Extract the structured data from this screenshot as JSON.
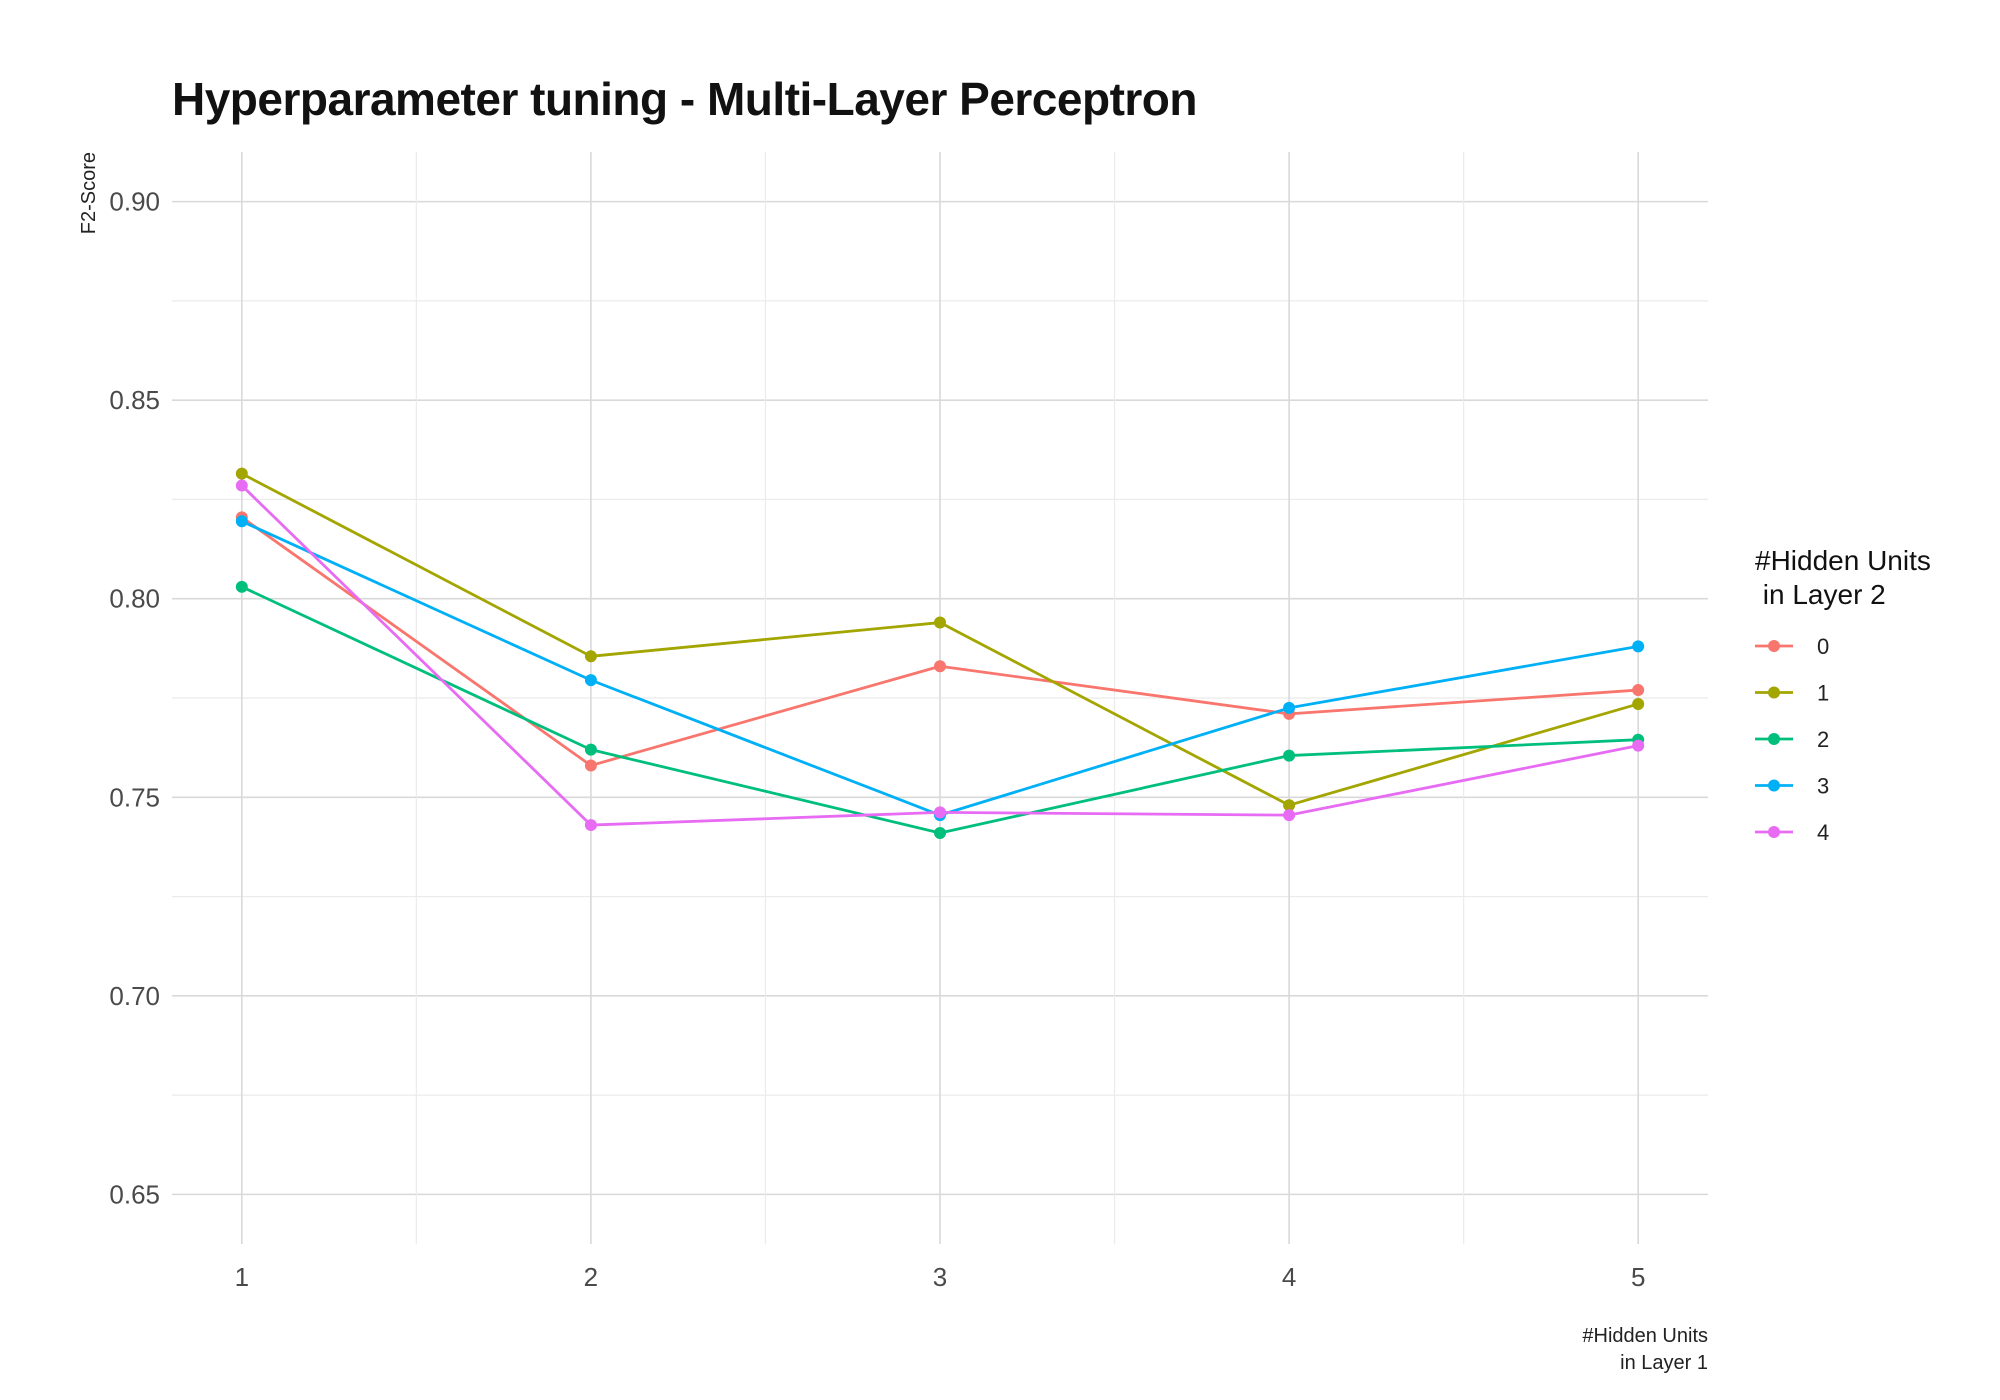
{
  "chart_data": {
    "type": "line",
    "title": "Hyperparameter tuning - Multi-Layer Perceptron",
    "xlabel_lines": [
      "#Hidden Units",
      "in Layer 1"
    ],
    "ylabel": "F2-Score",
    "x": [
      1,
      2,
      3,
      4,
      5
    ],
    "x_tick_labels": [
      "1",
      "2",
      "3",
      "4",
      "5"
    ],
    "xlim": [
      0.8,
      5.2
    ],
    "ylim": [
      0.6375,
      0.9125
    ],
    "y_ticks": [
      0.65,
      0.7,
      0.75,
      0.8,
      0.85,
      0.9
    ],
    "y_tick_labels": [
      "0.65",
      "0.70",
      "0.75",
      "0.80",
      "0.85",
      "0.90"
    ],
    "grid": true,
    "legend": {
      "title_lines": [
        "#Hidden Units",
        " in Layer 2"
      ],
      "position": "right"
    },
    "series": [
      {
        "name": "0",
        "color": "#F8766D",
        "values": [
          0.8205,
          0.758,
          0.783,
          0.771,
          0.777
        ]
      },
      {
        "name": "1",
        "color": "#A3A500",
        "values": [
          0.8315,
          0.7855,
          0.794,
          0.748,
          0.7735
        ]
      },
      {
        "name": "2",
        "color": "#00BF7D",
        "values": [
          0.803,
          0.762,
          0.741,
          0.7605,
          0.7645
        ]
      },
      {
        "name": "3",
        "color": "#00B0F6",
        "values": [
          0.8195,
          0.7795,
          0.7455,
          0.7725,
          0.788
        ]
      },
      {
        "name": "4",
        "color": "#E76BF3",
        "values": [
          0.8285,
          0.743,
          0.7462,
          0.7455,
          0.763
        ]
      }
    ]
  }
}
